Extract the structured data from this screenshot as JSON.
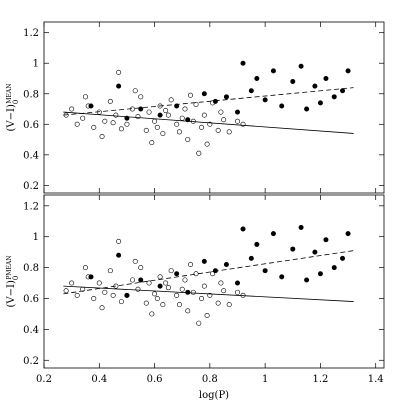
{
  "chart_data": [
    {
      "type": "scatter",
      "y_label_main": "(V−I)",
      "y_label_sub": "0",
      "y_label_sup": "MEAN",
      "xlim": [
        0.2,
        1.43
      ],
      "ylim": [
        0.15,
        1.27
      ],
      "xticks": [
        0.2,
        0.4,
        0.6,
        0.8,
        1,
        1.2,
        1.4
      ],
      "yticks": [
        0.2,
        0.4,
        0.6,
        0.8,
        1,
        1.2
      ],
      "series": [
        {
          "marker": "open",
          "color": "#000000",
          "x": [
            0.28,
            0.3,
            0.32,
            0.34,
            0.36,
            0.38,
            0.4,
            0.42,
            0.44,
            0.46,
            0.47,
            0.5,
            0.52,
            0.54,
            0.55,
            0.57,
            0.58,
            0.6,
            0.62,
            0.63,
            0.65,
            0.66,
            0.68,
            0.7,
            0.71,
            0.72,
            0.74,
            0.75,
            0.77,
            0.78,
            0.8,
            0.81,
            0.83,
            0.85,
            0.87,
            0.9,
            0.35,
            0.41,
            0.48,
            0.53,
            0.59,
            0.64,
            0.69,
            0.73,
            0.79,
            0.84,
            0.45,
            0.61,
            0.76,
            0.92
          ],
          "values": [
            0.66,
            0.7,
            0.6,
            0.64,
            0.72,
            0.58,
            0.68,
            0.62,
            0.75,
            0.66,
            0.94,
            0.6,
            0.7,
            0.65,
            0.78,
            0.56,
            0.68,
            0.62,
            0.72,
            0.54,
            0.66,
            0.76,
            0.6,
            0.64,
            0.7,
            0.5,
            0.62,
            0.73,
            0.58,
            0.66,
            0.6,
            0.74,
            0.56,
            0.63,
            0.55,
            0.62,
            0.78,
            0.52,
            0.57,
            0.82,
            0.48,
            0.69,
            0.55,
            0.79,
            0.47,
            0.68,
            0.61,
            0.58,
            0.41,
            0.6
          ]
        },
        {
          "marker": "filled",
          "color": "#000000",
          "x": [
            0.37,
            0.47,
            0.5,
            0.55,
            0.62,
            0.68,
            0.72,
            0.78,
            0.82,
            0.86,
            0.9,
            0.92,
            0.95,
            0.97,
            1.0,
            1.03,
            1.06,
            1.1,
            1.13,
            1.15,
            1.18,
            1.2,
            1.22,
            1.25,
            1.28,
            1.3
          ],
          "values": [
            0.72,
            0.85,
            0.64,
            0.7,
            0.66,
            0.72,
            0.63,
            0.8,
            0.75,
            0.78,
            0.68,
            1.0,
            0.82,
            0.9,
            0.76,
            0.95,
            0.72,
            0.88,
            0.98,
            0.7,
            0.85,
            0.74,
            0.9,
            0.78,
            0.82,
            0.95
          ]
        },
        {
          "marker": "line",
          "style": "solid",
          "color": "#000000",
          "x": [
            0.27,
            1.32
          ],
          "values": [
            0.68,
            0.54
          ]
        },
        {
          "marker": "line",
          "style": "dashed",
          "color": "#000000",
          "x": [
            0.27,
            1.32
          ],
          "values": [
            0.66,
            0.84
          ]
        }
      ]
    },
    {
      "type": "scatter",
      "x_label": "log(P)",
      "y_label_main": "(V−I)",
      "y_label_sub": "0",
      "y_label_sup": "PMEAN",
      "xlim": [
        0.2,
        1.43
      ],
      "ylim": [
        0.15,
        1.27
      ],
      "xticks": [
        0.2,
        0.4,
        0.6,
        0.8,
        1,
        1.2,
        1.4
      ],
      "yticks": [
        0.2,
        0.4,
        0.6,
        0.8,
        1,
        1.2
      ],
      "series": [
        {
          "marker": "open",
          "color": "#000000",
          "x": [
            0.28,
            0.3,
            0.32,
            0.34,
            0.36,
            0.38,
            0.4,
            0.42,
            0.44,
            0.46,
            0.47,
            0.5,
            0.52,
            0.54,
            0.55,
            0.57,
            0.58,
            0.6,
            0.62,
            0.63,
            0.65,
            0.66,
            0.68,
            0.7,
            0.71,
            0.72,
            0.74,
            0.75,
            0.77,
            0.78,
            0.8,
            0.81,
            0.83,
            0.85,
            0.87,
            0.9,
            0.35,
            0.41,
            0.48,
            0.53,
            0.59,
            0.64,
            0.69,
            0.73,
            0.79,
            0.84,
            0.45,
            0.61,
            0.76,
            0.92
          ],
          "values": [
            0.65,
            0.7,
            0.62,
            0.66,
            0.74,
            0.6,
            0.7,
            0.64,
            0.78,
            0.68,
            0.97,
            0.62,
            0.72,
            0.66,
            0.8,
            0.57,
            0.7,
            0.63,
            0.74,
            0.56,
            0.67,
            0.78,
            0.62,
            0.66,
            0.72,
            0.52,
            0.64,
            0.76,
            0.6,
            0.68,
            0.62,
            0.76,
            0.57,
            0.65,
            0.56,
            0.64,
            0.8,
            0.54,
            0.58,
            0.84,
            0.5,
            0.7,
            0.56,
            0.82,
            0.49,
            0.7,
            0.62,
            0.6,
            0.44,
            0.62
          ]
        },
        {
          "marker": "filled",
          "color": "#000000",
          "x": [
            0.37,
            0.47,
            0.5,
            0.55,
            0.62,
            0.68,
            0.72,
            0.78,
            0.82,
            0.86,
            0.9,
            0.92,
            0.95,
            0.97,
            1.0,
            1.03,
            1.06,
            1.1,
            1.13,
            1.15,
            1.18,
            1.2,
            1.22,
            1.25,
            1.28,
            1.3
          ],
          "values": [
            0.74,
            0.88,
            0.62,
            0.72,
            0.68,
            0.76,
            0.64,
            0.84,
            0.78,
            0.82,
            0.7,
            1.05,
            0.86,
            0.95,
            0.78,
            1.02,
            0.74,
            0.92,
            1.06,
            0.72,
            0.9,
            0.76,
            0.98,
            0.8,
            0.86,
            1.02
          ]
        },
        {
          "marker": "line",
          "style": "solid",
          "color": "#000000",
          "x": [
            0.27,
            1.32
          ],
          "values": [
            0.68,
            0.58
          ]
        },
        {
          "marker": "line",
          "style": "dashed",
          "color": "#000000",
          "x": [
            0.27,
            1.32
          ],
          "values": [
            0.63,
            0.91
          ]
        }
      ]
    }
  ]
}
